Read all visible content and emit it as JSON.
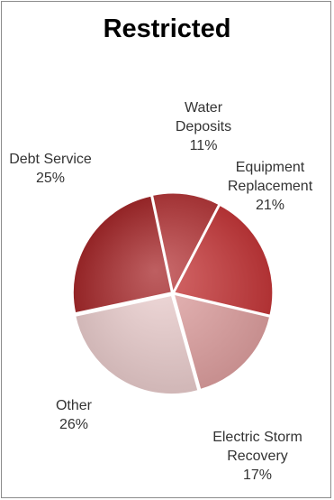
{
  "chart_data": {
    "type": "pie",
    "title": "Restricted",
    "slices": [
      {
        "name": "Water Deposits",
        "label_lines": [
          "Water",
          "Deposits"
        ],
        "pct_label": "11%",
        "value": 11,
        "color": "#b83a3c"
      },
      {
        "name": "Equipment Replacement",
        "label_lines": [
          "Equipment",
          "Replacement"
        ],
        "pct_label": "21%",
        "value": 21,
        "color": "#c8393b"
      },
      {
        "name": "Electric Storm Recovery",
        "label_lines": [
          "Electric Storm",
          "Recovery"
        ],
        "pct_label": "17%",
        "value": 17,
        "color": "#e2a3a3"
      },
      {
        "name": "Other",
        "label_lines": [
          "Other"
        ],
        "pct_label": "26%",
        "value": 26,
        "color": "#eed0d0"
      },
      {
        "name": "Debt Service",
        "label_lines": [
          "Debt Service"
        ],
        "pct_label": "25%",
        "value": 25,
        "color": "#a82a2c"
      }
    ],
    "legend": "none"
  }
}
